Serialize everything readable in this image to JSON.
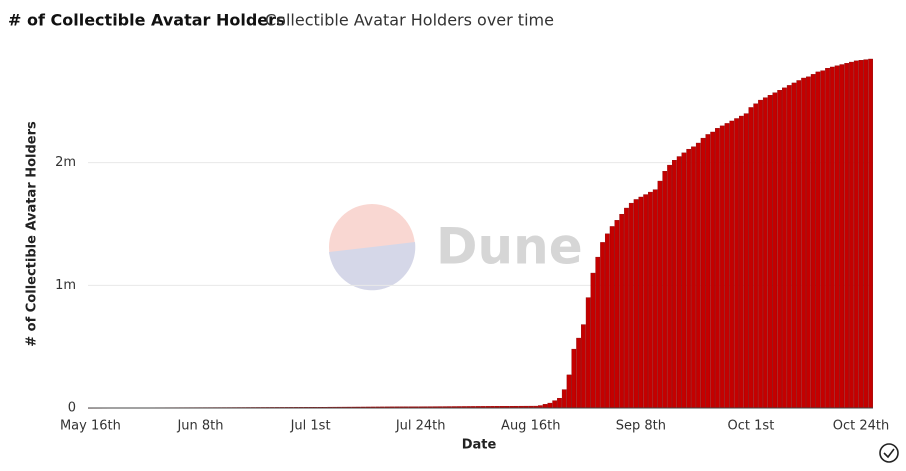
{
  "chart_data": {
    "type": "bar",
    "title": "# of Collectible Avatar Holders",
    "subtitle": "Collectible Avatar Holders over time",
    "x_label": "Date",
    "y_label": "# of Collectible Avatar Holders",
    "watermark": "Dune",
    "color": "#c40000",
    "grid": true,
    "ylim": [
      0,
      3000000
    ],
    "yticks": [
      0,
      {
        "value": 1000000,
        "label": "1m"
      },
      {
        "value": 2000000,
        "label": "2m"
      }
    ],
    "categories": [
      "May 16th",
      null,
      null,
      null,
      null,
      null,
      null,
      null,
      null,
      null,
      null,
      null,
      null,
      null,
      null,
      null,
      null,
      null,
      null,
      null,
      null,
      null,
      null,
      "Jun 8th",
      null,
      null,
      null,
      null,
      null,
      null,
      null,
      null,
      null,
      null,
      null,
      null,
      null,
      null,
      null,
      null,
      null,
      null,
      null,
      null,
      null,
      null,
      "Jul 1st",
      null,
      null,
      null,
      null,
      null,
      null,
      null,
      null,
      null,
      null,
      null,
      null,
      null,
      null,
      null,
      null,
      null,
      null,
      null,
      null,
      null,
      null,
      "Jul 24th",
      null,
      null,
      null,
      null,
      null,
      null,
      null,
      null,
      null,
      null,
      null,
      null,
      null,
      null,
      null,
      null,
      null,
      null,
      null,
      null,
      null,
      null,
      "Aug 16th",
      null,
      null,
      null,
      null,
      null,
      null,
      null,
      null,
      null,
      null,
      null,
      null,
      null,
      null,
      null,
      null,
      null,
      null,
      null,
      null,
      null,
      null,
      "Sep 8th",
      null,
      null,
      null,
      null,
      null,
      null,
      null,
      null,
      null,
      null,
      null,
      null,
      null,
      null,
      null,
      null,
      null,
      null,
      null,
      null,
      null,
      null,
      "Oct 1st",
      null,
      null,
      null,
      null,
      null,
      null,
      null,
      null,
      null,
      null,
      null,
      null,
      null,
      null,
      null,
      null,
      null,
      null,
      null,
      null,
      null,
      null,
      "Oct 24th",
      null,
      null
    ],
    "values": [
      1200,
      1300,
      1400,
      1500,
      1600,
      1700,
      1800,
      1900,
      2000,
      2100,
      2200,
      2300,
      2400,
      2500,
      2600,
      2700,
      2800,
      2900,
      3000,
      3100,
      3200,
      3300,
      3400,
      3500,
      3600,
      3700,
      3800,
      3900,
      4000,
      4100,
      4200,
      4300,
      4400,
      4500,
      4600,
      4700,
      4800,
      4900,
      5000,
      5100,
      5200,
      5300,
      5400,
      5500,
      5600,
      5700,
      5800,
      5900,
      6000,
      6100,
      7000,
      7200,
      7400,
      7600,
      7800,
      8000,
      8200,
      8400,
      8600,
      8800,
      9000,
      9200,
      9400,
      9600,
      9800,
      10000,
      10200,
      10400,
      10600,
      10800,
      11000,
      11200,
      11400,
      11600,
      11800,
      12000,
      12200,
      12400,
      12600,
      12800,
      13000,
      13200,
      13400,
      13600,
      13800,
      14000,
      14200,
      14400,
      14600,
      14800,
      15000,
      15200,
      15400,
      15600,
      20000,
      30000,
      40000,
      60000,
      80000,
      150000,
      270000,
      480000,
      570000,
      680000,
      900000,
      1100000,
      1230000,
      1350000,
      1420000,
      1480000,
      1530000,
      1580000,
      1630000,
      1670000,
      1700000,
      1720000,
      1740000,
      1760000,
      1780000,
      1850000,
      1930000,
      1980000,
      2020000,
      2050000,
      2080000,
      2110000,
      2130000,
      2160000,
      2200000,
      2230000,
      2250000,
      2280000,
      2300000,
      2320000,
      2340000,
      2360000,
      2380000,
      2400000,
      2450000,
      2480000,
      2510000,
      2530000,
      2550000,
      2570000,
      2590000,
      2610000,
      2630000,
      2650000,
      2670000,
      2690000,
      2700000,
      2720000,
      2740000,
      2750000,
      2770000,
      2780000,
      2790000,
      2800000,
      2810000,
      2820000,
      2830000,
      2835000,
      2840000,
      2845000
    ]
  }
}
